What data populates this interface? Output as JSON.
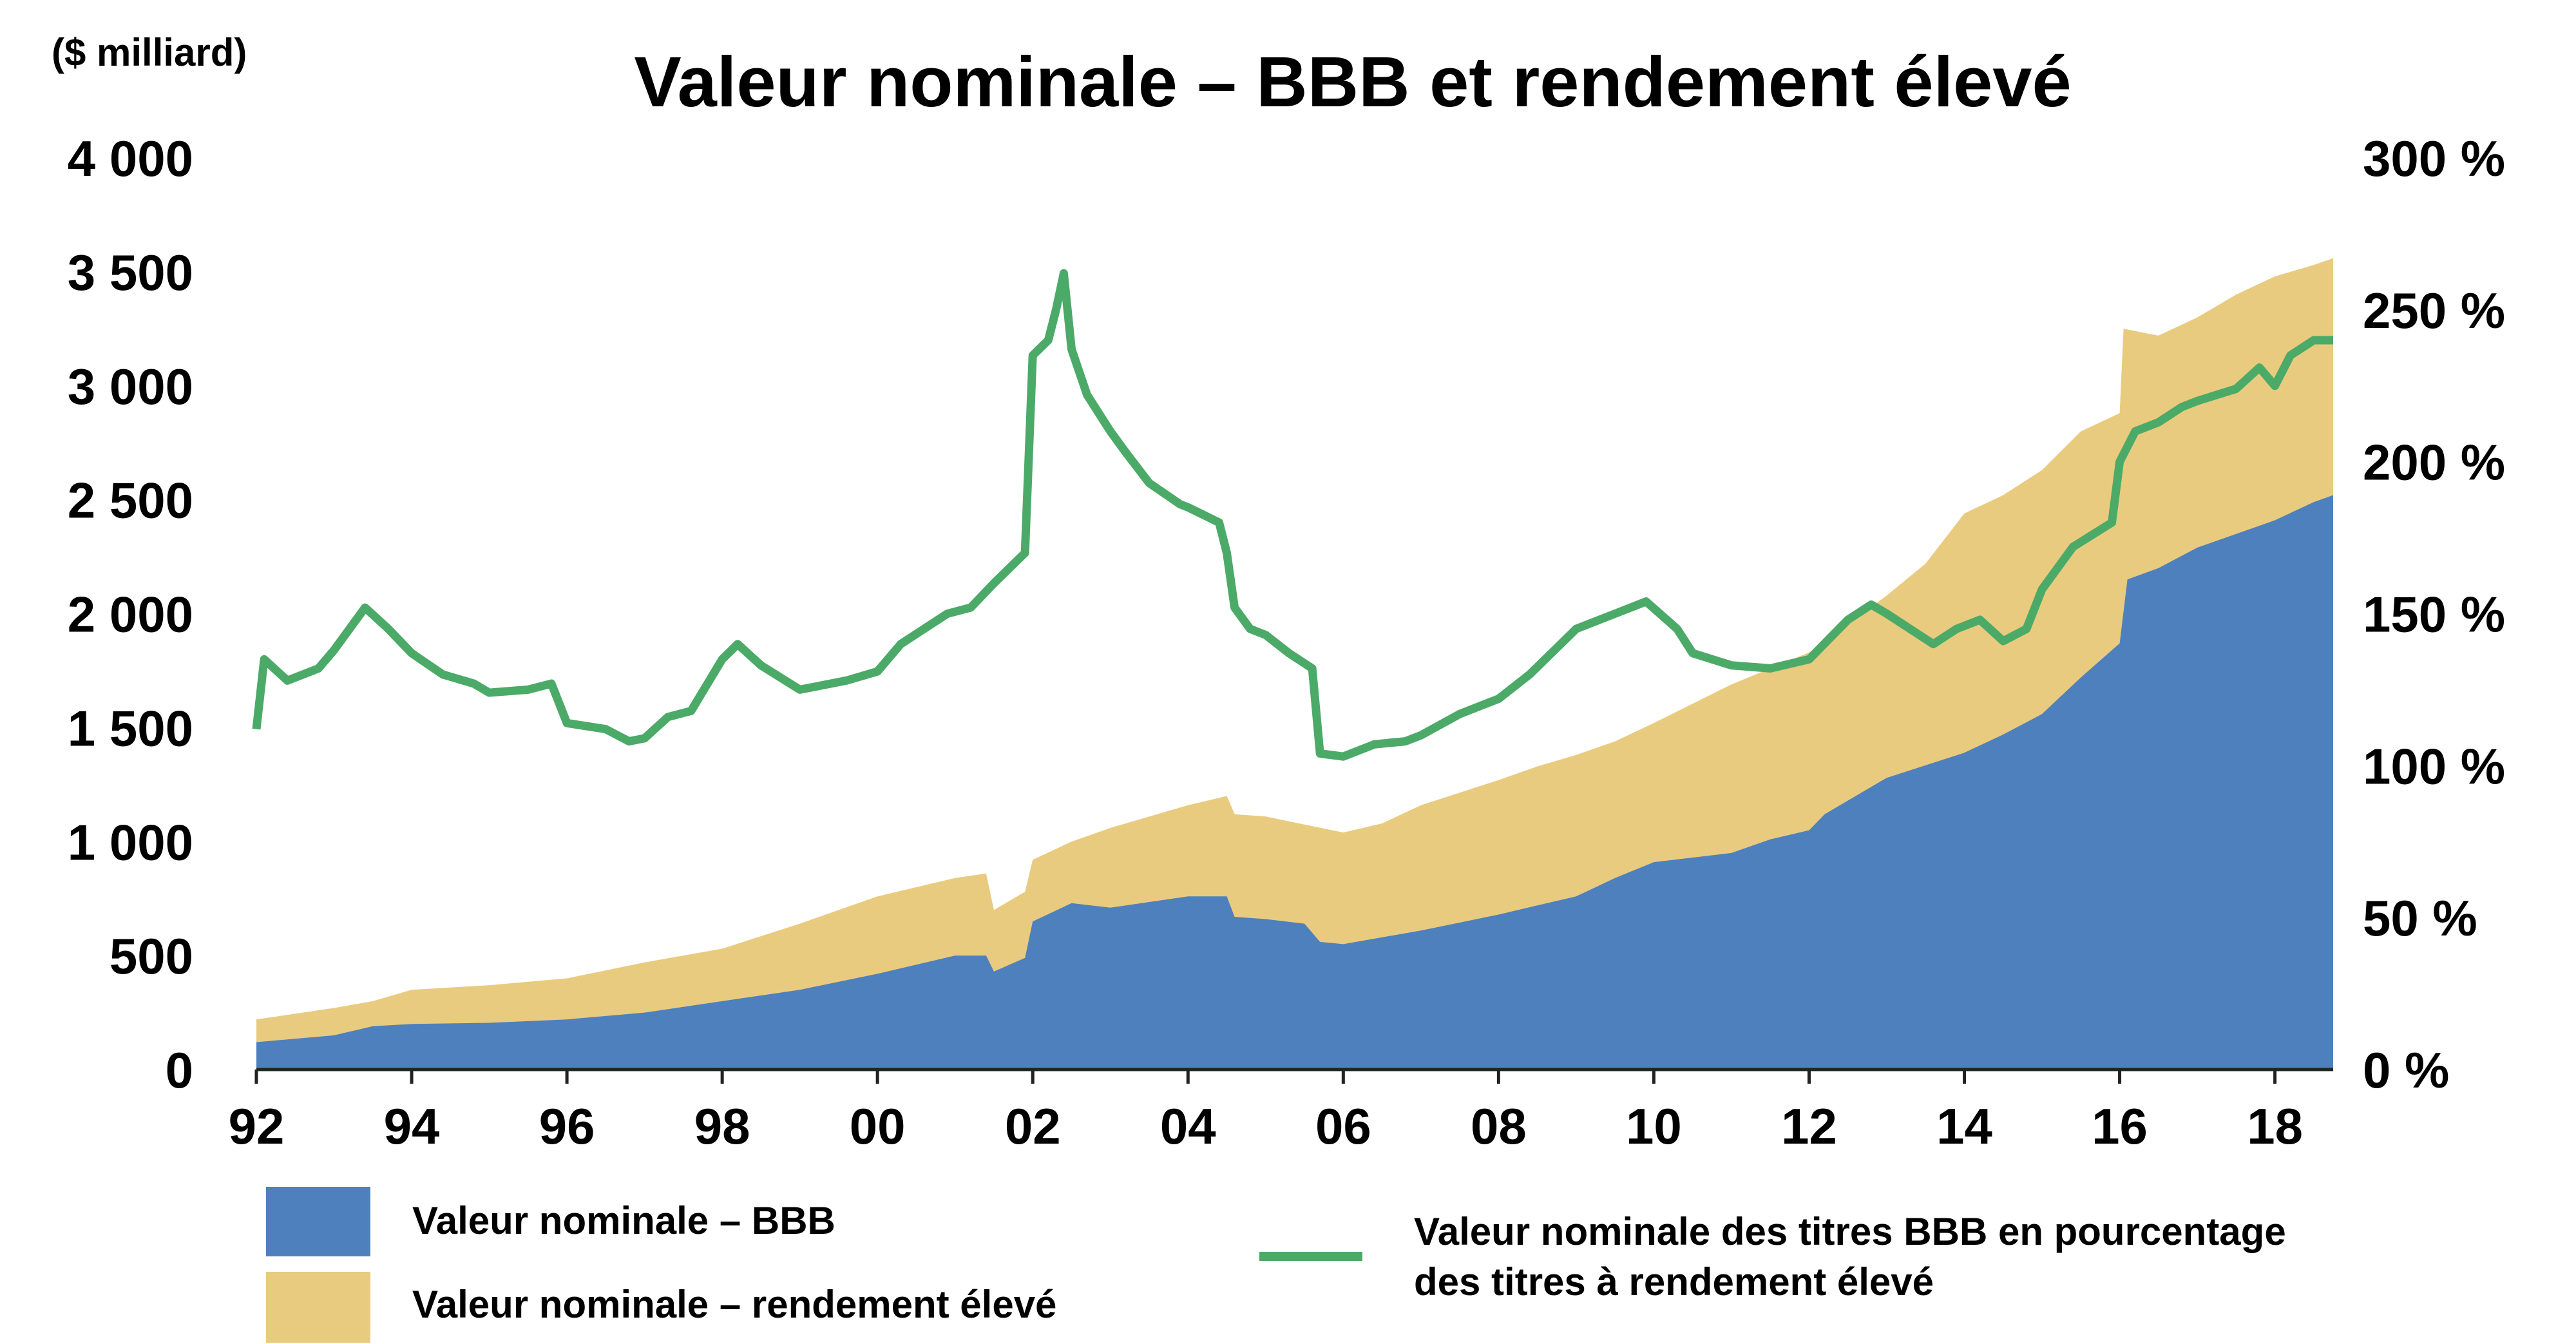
{
  "chart_data": {
    "type": "area",
    "title": "Valeur nominale – BBB et rendement élevé",
    "y_left_unit": "($ milliard)",
    "y_left_ticks": [
      "0",
      "500",
      "1 000",
      "1 500",
      "2 000",
      "2 500",
      "3 000",
      "3 500",
      "4 000"
    ],
    "y_left_range": [
      0,
      4000
    ],
    "y_right_ticks": [
      "0 %",
      "50 %",
      "100 %",
      "150 %",
      "200 %",
      "250 %",
      "300 %"
    ],
    "y_right_range": [
      0,
      300
    ],
    "x_ticks": [
      "92",
      "94",
      "96",
      "98",
      "00",
      "02",
      "04",
      "06",
      "08",
      "10",
      "12",
      "14",
      "16",
      "18"
    ],
    "x_tick_years": [
      1992,
      1994,
      1996,
      1998,
      2000,
      2002,
      2004,
      2006,
      2008,
      2010,
      2012,
      2014,
      2016,
      2018
    ],
    "x_range": [
      1992,
      2018.75
    ],
    "grid": false,
    "legend_position": "bottom",
    "series": [
      {
        "name": "Valeur nominale – BBB",
        "axis": "left",
        "kind": "area",
        "color": "#4E80BD",
        "points": [
          [
            1992,
            120
          ],
          [
            1993,
            150
          ],
          [
            1993.5,
            190
          ],
          [
            1994,
            200
          ],
          [
            1995,
            205
          ],
          [
            1996,
            220
          ],
          [
            1997,
            250
          ],
          [
            1998,
            300
          ],
          [
            1999,
            350
          ],
          [
            2000,
            420
          ],
          [
            2000.5,
            460
          ],
          [
            2001,
            500
          ],
          [
            2001.4,
            500
          ],
          [
            2001.5,
            430
          ],
          [
            2001.9,
            490
          ],
          [
            2002,
            650
          ],
          [
            2002.5,
            730
          ],
          [
            2003,
            710
          ],
          [
            2004,
            760
          ],
          [
            2004.5,
            760
          ],
          [
            2004.6,
            670
          ],
          [
            2005,
            660
          ],
          [
            2005.5,
            640
          ],
          [
            2005.7,
            560
          ],
          [
            2006,
            550
          ],
          [
            2006.5,
            580
          ],
          [
            2007,
            610
          ],
          [
            2008,
            680
          ],
          [
            2008.5,
            720
          ],
          [
            2009,
            760
          ],
          [
            2009.5,
            840
          ],
          [
            2010,
            910
          ],
          [
            2011,
            950
          ],
          [
            2011.5,
            1010
          ],
          [
            2012,
            1050
          ],
          [
            2012.2,
            1120
          ],
          [
            2013,
            1280
          ],
          [
            2014,
            1390
          ],
          [
            2014.5,
            1470
          ],
          [
            2015,
            1560
          ],
          [
            2015.5,
            1720
          ],
          [
            2016,
            1870
          ],
          [
            2016.1,
            2150
          ],
          [
            2016.5,
            2200
          ],
          [
            2017,
            2290
          ],
          [
            2017.5,
            2350
          ],
          [
            2018,
            2410
          ],
          [
            2018.5,
            2490
          ],
          [
            2018.75,
            2520
          ]
        ]
      },
      {
        "name": "Valeur nominale – rendement élevé",
        "axis": "left",
        "kind": "area",
        "color": "#E9CB7F",
        "points": [
          [
            1992,
            220
          ],
          [
            1993,
            270
          ],
          [
            1993.5,
            300
          ],
          [
            1994,
            350
          ],
          [
            1995,
            370
          ],
          [
            1996,
            400
          ],
          [
            1997,
            470
          ],
          [
            1998,
            530
          ],
          [
            1999,
            640
          ],
          [
            2000,
            760
          ],
          [
            2001,
            840
          ],
          [
            2001.4,
            860
          ],
          [
            2001.5,
            700
          ],
          [
            2001.9,
            780
          ],
          [
            2002,
            920
          ],
          [
            2002.5,
            1000
          ],
          [
            2003,
            1060
          ],
          [
            2004,
            1160
          ],
          [
            2004.5,
            1200
          ],
          [
            2004.6,
            1120
          ],
          [
            2005,
            1110
          ],
          [
            2006,
            1040
          ],
          [
            2006.5,
            1080
          ],
          [
            2007,
            1160
          ],
          [
            2008,
            1270
          ],
          [
            2008.5,
            1330
          ],
          [
            2009,
            1380
          ],
          [
            2009.5,
            1440
          ],
          [
            2010,
            1520
          ],
          [
            2011,
            1690
          ],
          [
            2012,
            1830
          ],
          [
            2013,
            2080
          ],
          [
            2013.5,
            2220
          ],
          [
            2014,
            2440
          ],
          [
            2014.5,
            2520
          ],
          [
            2015,
            2630
          ],
          [
            2015.5,
            2800
          ],
          [
            2016,
            2880
          ],
          [
            2016.05,
            3250
          ],
          [
            2016.5,
            3220
          ],
          [
            2017,
            3300
          ],
          [
            2017.5,
            3400
          ],
          [
            2018,
            3480
          ],
          [
            2018.5,
            3530
          ],
          [
            2018.75,
            3560
          ]
        ]
      },
      {
        "name": "Valeur nominale des titres BBB en pourcentage des titres à rendement élevé",
        "axis": "right",
        "kind": "line",
        "color": "#4CAA68",
        "points": [
          [
            1992,
            112
          ],
          [
            1992.1,
            135
          ],
          [
            1992.4,
            128
          ],
          [
            1992.8,
            132
          ],
          [
            1993,
            138
          ],
          [
            1993.2,
            145
          ],
          [
            1993.4,
            152
          ],
          [
            1993.7,
            145
          ],
          [
            1994,
            137
          ],
          [
            1994.4,
            130
          ],
          [
            1994.8,
            127
          ],
          [
            1995,
            124
          ],
          [
            1995.5,
            125
          ],
          [
            1995.8,
            127
          ],
          [
            1996,
            114
          ],
          [
            1996.5,
            112
          ],
          [
            1996.8,
            108
          ],
          [
            1997,
            109
          ],
          [
            1997.3,
            116
          ],
          [
            1997.6,
            118
          ],
          [
            1998,
            135
          ],
          [
            1998.2,
            140
          ],
          [
            1998.5,
            133
          ],
          [
            1999,
            125
          ],
          [
            1999.2,
            126
          ],
          [
            1999.6,
            128
          ],
          [
            2000,
            131
          ],
          [
            2000.3,
            140
          ],
          [
            2000.6,
            145
          ],
          [
            2000.9,
            150
          ],
          [
            2001.2,
            152
          ],
          [
            2001.5,
            160
          ],
          [
            2001.9,
            170
          ],
          [
            2002,
            235
          ],
          [
            2002.2,
            240
          ],
          [
            2002.3,
            250
          ],
          [
            2002.4,
            262
          ],
          [
            2002.5,
            237
          ],
          [
            2002.7,
            222
          ],
          [
            2003,
            210
          ],
          [
            2003.2,
            203
          ],
          [
            2003.5,
            193
          ],
          [
            2003.9,
            186
          ],
          [
            2004,
            185
          ],
          [
            2004.4,
            180
          ],
          [
            2004.5,
            170
          ],
          [
            2004.6,
            152
          ],
          [
            2004.8,
            145
          ],
          [
            2005,
            143
          ],
          [
            2005.3,
            137
          ],
          [
            2005.6,
            132
          ],
          [
            2005.7,
            104
          ],
          [
            2006,
            103
          ],
          [
            2006.4,
            107
          ],
          [
            2006.8,
            108
          ],
          [
            2007,
            110
          ],
          [
            2007.5,
            117
          ],
          [
            2008,
            122
          ],
          [
            2008.4,
            130
          ],
          [
            2008.8,
            140
          ],
          [
            2009,
            145
          ],
          [
            2009.5,
            150
          ],
          [
            2009.9,
            154
          ],
          [
            2010.3,
            145
          ],
          [
            2010.5,
            137
          ],
          [
            2011,
            133
          ],
          [
            2011.5,
            132
          ],
          [
            2012,
            135
          ],
          [
            2012.5,
            148
          ],
          [
            2012.8,
            153
          ],
          [
            2013,
            150
          ],
          [
            2013.3,
            145
          ],
          [
            2013.6,
            140
          ],
          [
            2013.9,
            145
          ],
          [
            2014.2,
            148
          ],
          [
            2014.5,
            141
          ],
          [
            2014.8,
            145
          ],
          [
            2015,
            158
          ],
          [
            2015.4,
            172
          ],
          [
            2015.9,
            180
          ],
          [
            2016,
            200
          ],
          [
            2016.2,
            210
          ],
          [
            2016.5,
            213
          ],
          [
            2016.8,
            218
          ],
          [
            2017,
            220
          ],
          [
            2017.5,
            224
          ],
          [
            2017.8,
            231
          ],
          [
            2018,
            225
          ],
          [
            2018.2,
            235
          ],
          [
            2018.5,
            240
          ],
          [
            2018.75,
            240
          ]
        ]
      }
    ]
  }
}
